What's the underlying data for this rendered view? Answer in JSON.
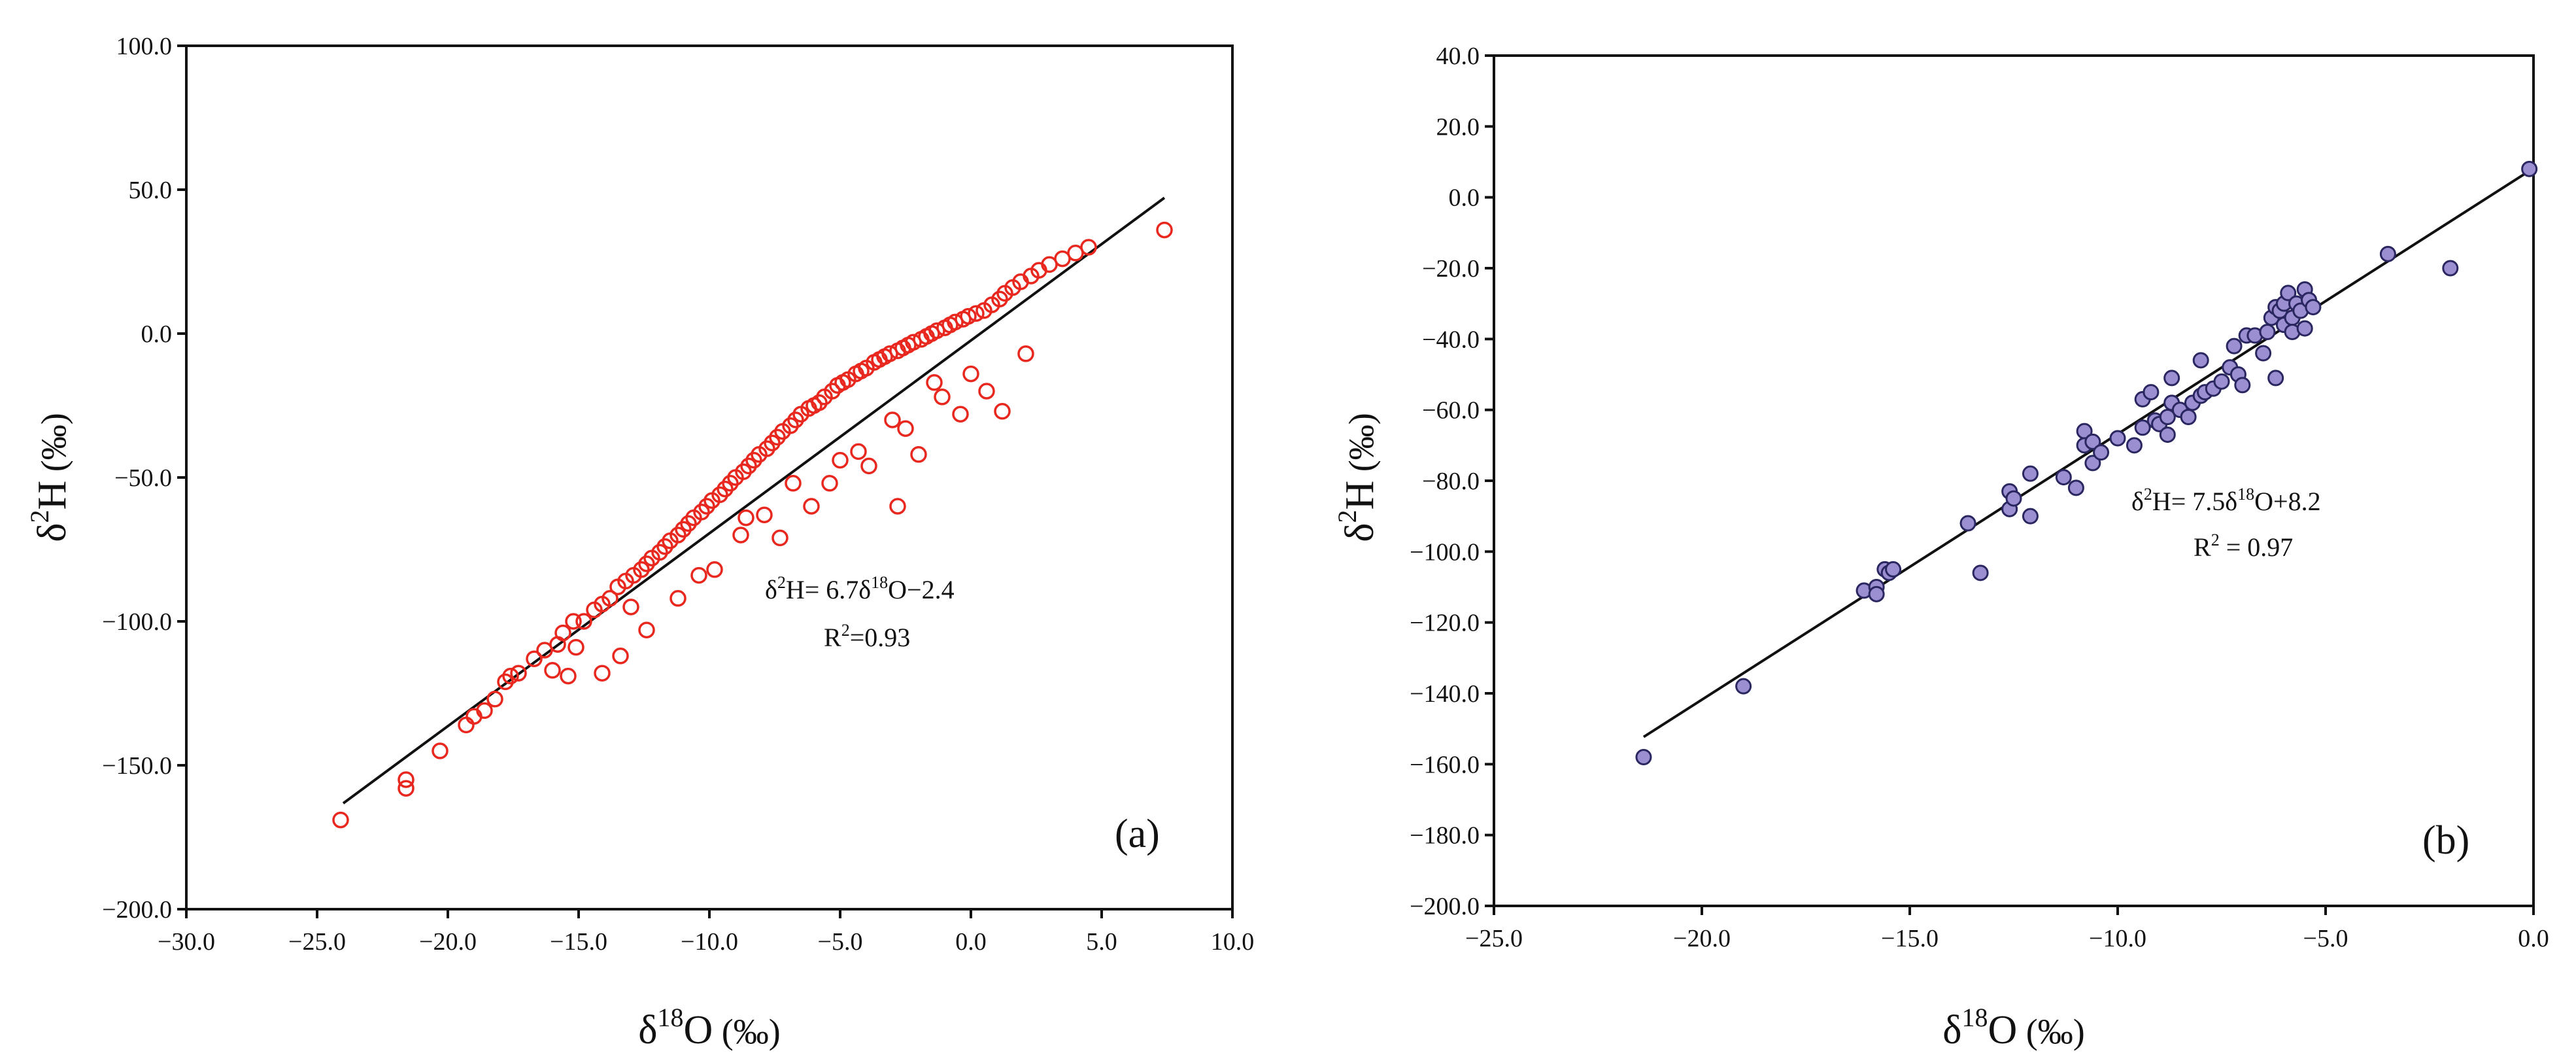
{
  "chart_data": [
    {
      "type": "scatter",
      "panel_label": "(a)",
      "xlim": [
        -30,
        10
      ],
      "ylim": [
        -200,
        100
      ],
      "xticks": [
        "−30.0",
        "−25.0",
        "−20.0",
        "−15.0",
        "−10.0",
        "−5.0",
        "0.0",
        "5.0",
        "10.0"
      ],
      "yticks": [
        "−200.0",
        "−150.0",
        "−100.0",
        "−50.0",
        "0.0",
        "50.0",
        "100.0"
      ],
      "xlabel": {
        "prefix": "δ",
        "sup": "18",
        "main": "O",
        "unit": " (‰)"
      },
      "ylabel": {
        "prefix": "δ",
        "sup": "2",
        "main": "H",
        "unit": " (‰)"
      },
      "marker": {
        "style": "open-circle",
        "color": "#e8281f"
      },
      "fit": {
        "slope": 6.7,
        "intercept": -2.4,
        "x_range": [
          -24,
          7.4
        ],
        "color": "#111111"
      },
      "equation": {
        "a": "δ",
        "b": "2",
        "c": "H= 6.7δ",
        "d": "18",
        "e": "O−2.4"
      },
      "r2": {
        "a": "R",
        "b": "2",
        "c": "=0.93"
      },
      "series": [
        {
          "name": "samples",
          "x": [
            -24.1,
            -21.6,
            -21.6,
            -20.3,
            -19.3,
            -19.0,
            -18.6,
            -18.2,
            -17.8,
            -17.6,
            -17.3,
            -16.7,
            -16.3,
            -15.8,
            -15.6,
            -15.2,
            -15.1,
            -14.8,
            -14.4,
            -14.1,
            -13.8,
            -13.5,
            -13.2,
            -12.9,
            -12.6,
            -12.4,
            -12.2,
            -11.9,
            -11.7,
            -11.5,
            -11.2,
            -11.0,
            -10.8,
            -10.6,
            -10.3,
            -10.1,
            -9.9,
            -9.6,
            -9.4,
            -9.2,
            -9.0,
            -8.7,
            -8.5,
            -8.3,
            -8.1,
            -7.8,
            -7.6,
            -7.4,
            -7.2,
            -6.9,
            -6.7,
            -6.5,
            -6.2,
            -6.0,
            -5.8,
            -5.6,
            -5.3,
            -5.1,
            -4.9,
            -4.7,
            -4.4,
            -4.2,
            -4.0,
            -3.7,
            -3.5,
            -3.3,
            -3.1,
            -2.8,
            -2.6,
            -2.4,
            -2.2,
            -1.9,
            -1.7,
            -1.5,
            -1.3,
            -1.0,
            -0.8,
            -0.6,
            -0.3,
            -0.1,
            0.2,
            0.5,
            0.8,
            1.1,
            1.3,
            1.6,
            1.9,
            2.3,
            2.6,
            3.0,
            3.5,
            4.0,
            4.5,
            7.4,
            -2.8,
            -2.0,
            1.2,
            2.1,
            -14.1,
            -13.4,
            -15.4,
            -16.0,
            -12.4,
            -8.8,
            -7.3,
            -5.4,
            -3.9,
            -0.4,
            -11.2,
            -9.8,
            -7.9,
            -6.1,
            -4.3,
            -2.5,
            -1.1,
            0.6,
            -13.0,
            -10.4,
            -8.6,
            -6.8,
            -5.0,
            -3.0,
            -1.4,
            0.0
          ],
          "y": [
            -169.0,
            -158.0,
            -155.0,
            -145.0,
            -136.0,
            -133.0,
            -131.0,
            -127.0,
            -121.0,
            -119.0,
            -118.0,
            -113.0,
            -110.0,
            -108.0,
            -104.0,
            -100.0,
            -109.0,
            -100.0,
            -96.0,
            -94.0,
            -92.0,
            -88.0,
            -86.0,
            -84.0,
            -82.0,
            -80.0,
            -78.0,
            -76.0,
            -74.0,
            -72.0,
            -70.0,
            -68.0,
            -66.0,
            -64.0,
            -62.0,
            -60.0,
            -58.0,
            -56.0,
            -54.0,
            -52.0,
            -50.0,
            -48.0,
            -46.0,
            -44.0,
            -42.0,
            -40.0,
            -38.0,
            -36.0,
            -34.0,
            -32.0,
            -30.0,
            -28.0,
            -26.0,
            -25.0,
            -24.0,
            -22.0,
            -20.0,
            -18.0,
            -17.0,
            -16.0,
            -14.0,
            -13.0,
            -12.0,
            -10.0,
            -9.0,
            -8.0,
            -7.0,
            -6.0,
            -5.0,
            -4.0,
            -3.0,
            -2.0,
            -1.0,
            0.0,
            1.0,
            2.0,
            3.0,
            4.0,
            5.0,
            6.0,
            7.0,
            8.0,
            10.0,
            12.0,
            14.0,
            16.0,
            18.0,
            20.0,
            22.0,
            24.0,
            26.0,
            28.0,
            30.0,
            36.0,
            -60.0,
            -42.0,
            -27.0,
            -7.0,
            -118.0,
            -112.0,
            -119.0,
            -117.0,
            -103.0,
            -70.0,
            -71.0,
            -52.0,
            -46.0,
            -28.0,
            -92.0,
            -82.0,
            -63.0,
            -60.0,
            -41.0,
            -33.0,
            -22.0,
            -20.0,
            -95.0,
            -84.0,
            -64.0,
            -52.0,
            -44.0,
            -30.0,
            -17.0,
            -14.0
          ]
        }
      ]
    },
    {
      "type": "scatter",
      "panel_label": "(b)",
      "xlim": [
        -25,
        0
      ],
      "ylim": [
        -200,
        40
      ],
      "xticks": [
        "−25.0",
        "−20.0",
        "−15.0",
        "−10.0",
        "−5.0",
        "0.0"
      ],
      "yticks": [
        "−200.0",
        "−180.0",
        "−160.0",
        "−140.0",
        "−120.0",
        "−100.0",
        "−80.0",
        "−60.0",
        "−40.0",
        "−20.0",
        "0.0",
        "20.0",
        "40.0"
      ],
      "xlabel": {
        "prefix": "δ",
        "sup": "18",
        "main": "O",
        "unit": " (‰)"
      },
      "ylabel": {
        "prefix": "δ",
        "sup": "2",
        "main": "H",
        "unit": " (‰)"
      },
      "marker": {
        "style": "filled-circle",
        "color": "#9b8fd1",
        "edge": "#2a2660"
      },
      "fit": {
        "slope": 7.5,
        "intercept": 8.2,
        "x_range": [
          -21.4,
          -0.1
        ],
        "color": "#111111"
      },
      "equation": {
        "a": "δ",
        "b": "2",
        "c": "H= 7.5δ",
        "d": "18",
        "e": "O+8.2"
      },
      "r2": {
        "a": "R",
        "b": "2",
        "c": " = 0.97"
      },
      "series": [
        {
          "name": "samples",
          "x": [
            -21.4,
            -19.0,
            -16.1,
            -15.8,
            -15.8,
            -15.6,
            -15.5,
            -15.4,
            -13.6,
            -13.3,
            -12.6,
            -12.6,
            -12.5,
            -12.1,
            -12.1,
            -11.3,
            -11.0,
            -10.8,
            -10.8,
            -10.6,
            -10.6,
            -10.4,
            -10.0,
            -9.6,
            -9.4,
            -9.4,
            -9.2,
            -9.1,
            -9.0,
            -8.8,
            -8.8,
            -8.7,
            -8.7,
            -8.5,
            -8.3,
            -8.2,
            -8.0,
            -8.0,
            -7.9,
            -7.7,
            -7.5,
            -7.3,
            -7.2,
            -7.1,
            -7.0,
            -6.9,
            -6.7,
            -6.5,
            -6.4,
            -6.3,
            -6.2,
            -6.2,
            -6.1,
            -6.0,
            -6.0,
            -5.9,
            -5.8,
            -5.8,
            -5.7,
            -5.6,
            -5.5,
            -5.5,
            -5.4,
            -5.3,
            -3.5,
            -2.0,
            -0.1
          ],
          "y": [
            -158.0,
            -138.0,
            -111.0,
            -110.0,
            -112.0,
            -105.0,
            -106.0,
            -105.0,
            -92.0,
            -106.0,
            -83.0,
            -88.0,
            -85.0,
            -78.0,
            -90.0,
            -79.0,
            -82.0,
            -66.0,
            -70.0,
            -75.0,
            -69.0,
            -72.0,
            -68.0,
            -70.0,
            -65.0,
            -57.0,
            -55.0,
            -63.0,
            -64.0,
            -62.0,
            -67.0,
            -58.0,
            -51.0,
            -60.0,
            -62.0,
            -58.0,
            -56.0,
            -46.0,
            -55.0,
            -54.0,
            -52.0,
            -48.0,
            -42.0,
            -50.0,
            -53.0,
            -39.0,
            -39.0,
            -44.0,
            -38.0,
            -34.0,
            -31.0,
            -51.0,
            -32.0,
            -36.0,
            -30.0,
            -27.0,
            -34.0,
            -38.0,
            -30.0,
            -32.0,
            -26.0,
            -37.0,
            -29.0,
            -31.0,
            -16.0,
            -20.0,
            8.0
          ]
        }
      ]
    }
  ]
}
